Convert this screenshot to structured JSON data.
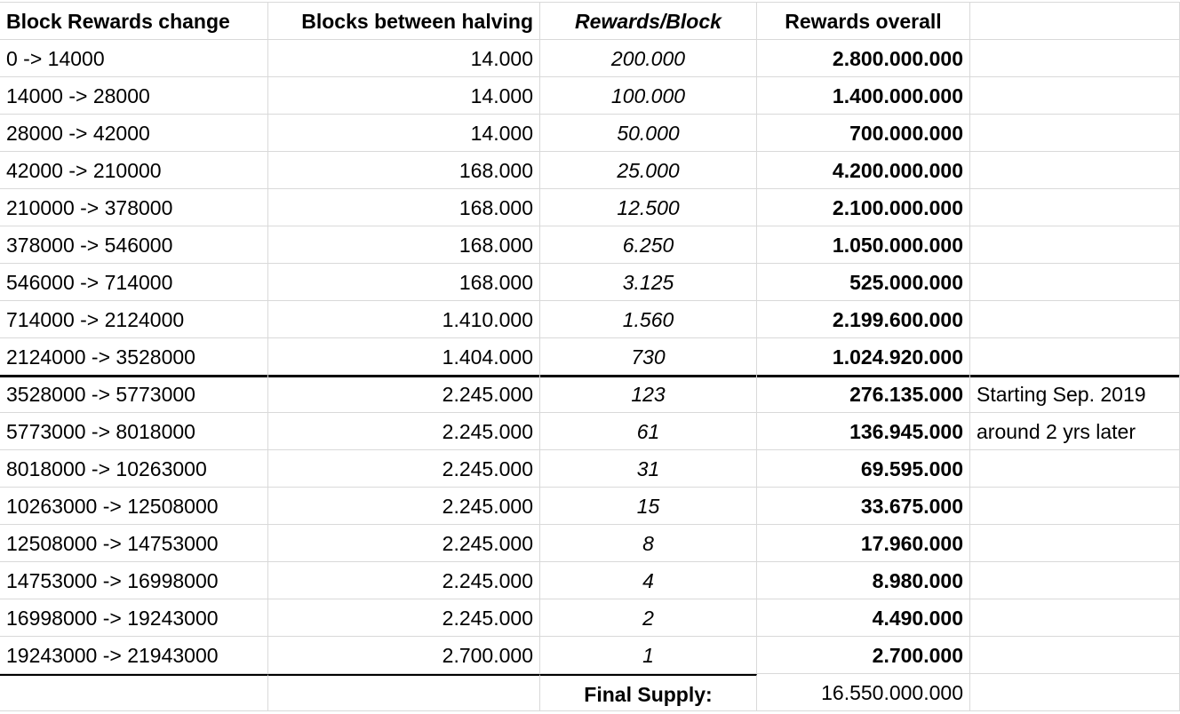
{
  "table": {
    "header": [
      "Block Rewards change",
      "Blocks between halving",
      "Rewards/Block",
      "Rewards overall"
    ],
    "rows": [
      [
        "0 -> 14000",
        "14.000",
        "200.000",
        "2.800.000.000"
      ],
      [
        "14000 -> 28000",
        "14.000",
        "100.000",
        "1.400.000.000"
      ],
      [
        "28000 -> 42000",
        "14.000",
        "50.000",
        "700.000.000"
      ],
      [
        "42000 -> 210000",
        "168.000",
        "25.000",
        "4.200.000.000"
      ],
      [
        "210000 -> 378000",
        "168.000",
        "12.500",
        "2.100.000.000"
      ],
      [
        "378000 -> 546000",
        "168.000",
        "6.250",
        "1.050.000.000"
      ],
      [
        "546000 -> 714000",
        "168.000",
        "3.125",
        "525.000.000"
      ],
      [
        "714000 -> 2124000",
        "1.410.000",
        "1.560",
        "2.199.600.000"
      ],
      [
        "2124000 -> 3528000",
        "1.404.000",
        "730",
        "1.024.920.000"
      ],
      [
        "3528000 -> 5773000",
        "2.245.000",
        "123",
        "276.135.000",
        "Starting Sep. 2019"
      ],
      [
        "5773000 -> 8018000",
        "2.245.000",
        "61",
        "136.945.000",
        "around 2 yrs later"
      ],
      [
        "8018000 -> 10263000",
        "2.245.000",
        "31",
        "69.595.000"
      ],
      [
        "10263000 -> 12508000",
        "2.245.000",
        "15",
        "33.675.000"
      ],
      [
        "12508000 -> 14753000",
        "2.245.000",
        "8",
        "17.960.000"
      ],
      [
        "14753000 -> 16998000",
        "2.245.000",
        "4",
        "8.980.000"
      ],
      [
        "16998000 -> 19243000",
        "2.245.000",
        "2",
        "4.490.000"
      ],
      [
        "19243000 -> 21943000",
        "2.700.000",
        "1",
        "2.700.000"
      ]
    ],
    "footer": {
      "label": "Final Supply:",
      "value": "16.550.000.000"
    }
  }
}
